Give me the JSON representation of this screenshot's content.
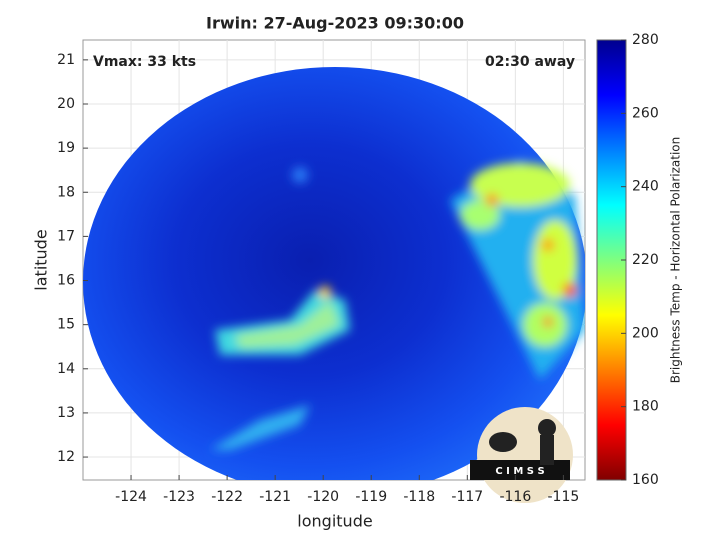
{
  "chart_data": {
    "type": "image-map",
    "title": "Irwin: 27-Aug-2023 09:30:00",
    "annotations": [
      "Vmax: 33 kts",
      "02:30 away"
    ],
    "x_label": "longitude",
    "y_label": "latitude",
    "xlim": [
      -125,
      -114.55
    ],
    "ylim": [
      11.48,
      21.45
    ],
    "xticks": [
      -124,
      -123,
      -122,
      -121,
      -120,
      -119,
      -118,
      -117,
      -116,
      -115
    ],
    "yticks": [
      12,
      13,
      14,
      15,
      16,
      17,
      18,
      19,
      20,
      21
    ],
    "grid": true,
    "colorbar": {
      "label": "Brightness Temp - Horizontal Polarization",
      "colormap": "jet",
      "lim": [
        160,
        280
      ],
      "ticks": [
        160,
        180,
        200,
        220,
        240,
        260,
        280
      ]
    },
    "logo_text": "C I M S S"
  }
}
